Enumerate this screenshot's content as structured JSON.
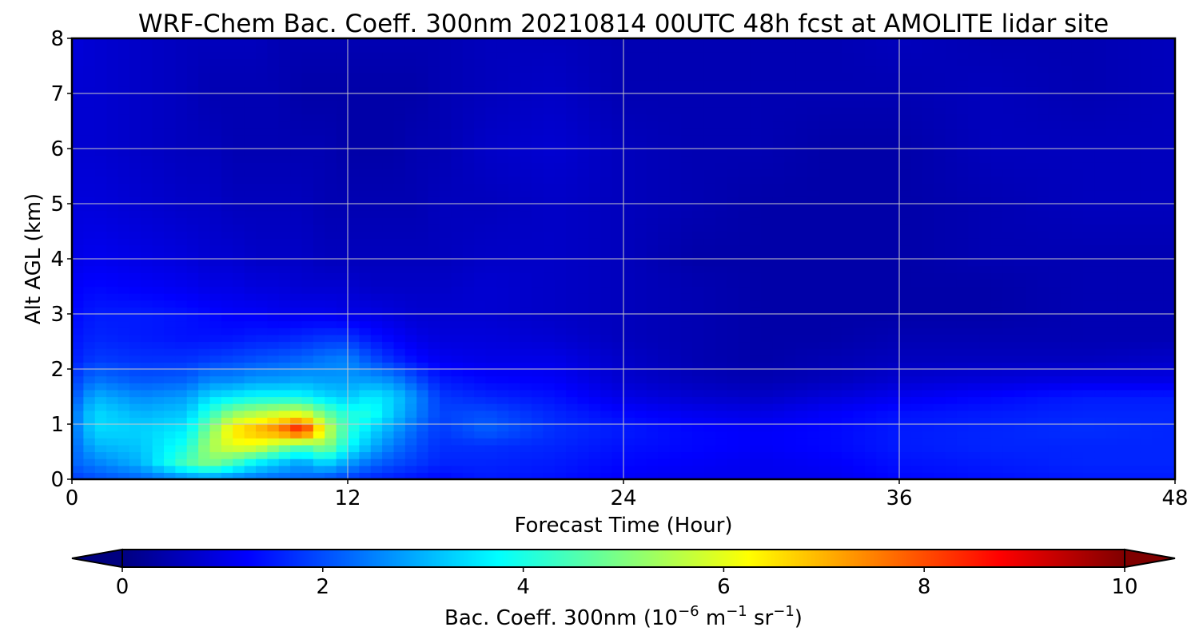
{
  "chart_data": {
    "type": "heatmap",
    "title": "WRF-Chem Bac. Coeff. 300nm  20210814 00UTC 48h fcst at AMOLITE lidar site",
    "xlabel": "Forecast Time (Hour)",
    "ylabel": "Alt AGL (km)",
    "xlim": [
      0,
      48
    ],
    "ylim": [
      0,
      8
    ],
    "xticks": [
      0,
      12,
      24,
      36,
      48
    ],
    "yticks": [
      0,
      1,
      2,
      3,
      4,
      5,
      6,
      7,
      8
    ],
    "grid": true,
    "colormap": "jet",
    "colorbar": {
      "label_prefix": "Bac. Coeff. 300nm  (10",
      "label_exp1": "−6",
      "label_mid": " m",
      "label_exp2": "−1",
      "label_mid2": " sr",
      "label_exp3": "−1",
      "label_suffix": ")",
      "range": [
        0,
        10
      ],
      "ticks": [
        0,
        2,
        4,
        6,
        8,
        10
      ],
      "extend": "both"
    },
    "field_x": [
      0,
      1,
      3,
      5,
      6,
      7,
      8,
      9,
      10,
      11,
      12,
      13,
      14,
      15,
      16,
      18,
      21,
      24,
      27,
      30,
      33,
      36,
      40,
      44,
      48
    ],
    "field_y": [
      0,
      0.3,
      0.6,
      0.9,
      1.2,
      1.5,
      1.8,
      2.2,
      2.6,
      3,
      3.5,
      4,
      5,
      6,
      7,
      8
    ],
    "field_values": [
      [
        1.8,
        2.2,
        2.2,
        2.3,
        2.3,
        2.0,
        1.8,
        1.5,
        1.4,
        1.3,
        1.2,
        1.0,
        0.9,
        0.8,
        0.8,
        0.9
      ],
      [
        2.0,
        2.5,
        3.0,
        3.4,
        3.4,
        3.0,
        2.4,
        1.8,
        1.6,
        1.5,
        1.3,
        1.1,
        0.9,
        0.8,
        0.8,
        0.8
      ],
      [
        2.2,
        3.0,
        3.2,
        3.3,
        3.0,
        2.6,
        2.1,
        1.7,
        1.5,
        1.5,
        1.2,
        1.0,
        0.8,
        0.7,
        0.7,
        0.7
      ],
      [
        2.5,
        4.5,
        4.0,
        3.6,
        3.2,
        2.8,
        2.2,
        1.7,
        1.4,
        1.4,
        1.1,
        0.9,
        0.7,
        0.6,
        0.6,
        0.6
      ],
      [
        2.6,
        5.0,
        5.4,
        5.0,
        4.2,
        3.4,
        2.6,
        1.8,
        1.4,
        1.3,
        1.0,
        0.8,
        0.7,
        0.6,
        0.5,
        0.6
      ],
      [
        2.4,
        4.4,
        6.0,
        6.5,
        5.2,
        3.6,
        2.6,
        1.9,
        1.4,
        1.2,
        1.0,
        0.8,
        0.6,
        0.5,
        0.5,
        0.6
      ],
      [
        2.3,
        3.6,
        6.0,
        7.0,
        5.5,
        3.8,
        2.8,
        2.0,
        1.5,
        1.2,
        0.9,
        0.7,
        0.6,
        0.5,
        0.5,
        0.6
      ],
      [
        2.2,
        3.2,
        5.2,
        7.6,
        5.8,
        3.8,
        2.8,
        2.1,
        1.5,
        1.1,
        0.9,
        0.7,
        0.6,
        0.5,
        0.5,
        0.5
      ],
      [
        2.2,
        2.8,
        4.5,
        8.8,
        6.0,
        3.8,
        2.9,
        2.2,
        1.6,
        1.1,
        0.8,
        0.7,
        0.6,
        0.5,
        0.4,
        0.5
      ],
      [
        2.0,
        3.4,
        5.2,
        6.0,
        4.8,
        3.4,
        2.8,
        2.4,
        1.7,
        1.1,
        0.8,
        0.6,
        0.5,
        0.5,
        0.4,
        0.5
      ],
      [
        1.8,
        2.8,
        3.8,
        4.2,
        4.0,
        3.2,
        2.8,
        2.5,
        1.7,
        1.0,
        0.8,
        0.6,
        0.5,
        0.4,
        0.4,
        0.5
      ],
      [
        1.6,
        2.3,
        3.0,
        3.4,
        4.0,
        3.6,
        2.8,
        2.0,
        1.4,
        1.0,
        0.7,
        0.6,
        0.5,
        0.4,
        0.4,
        0.5
      ],
      [
        1.5,
        2.0,
        2.4,
        2.8,
        3.2,
        3.3,
        2.6,
        1.6,
        1.2,
        0.9,
        0.7,
        0.6,
        0.5,
        0.4,
        0.4,
        0.5
      ],
      [
        1.4,
        1.8,
        2.0,
        2.2,
        2.5,
        2.6,
        2.0,
        1.3,
        1.0,
        0.8,
        0.7,
        0.6,
        0.5,
        0.5,
        0.4,
        0.5
      ],
      [
        1.3,
        1.6,
        1.7,
        1.8,
        1.9,
        1.8,
        1.5,
        1.1,
        0.9,
        0.8,
        0.7,
        0.6,
        0.6,
        0.5,
        0.5,
        0.5
      ],
      [
        1.5,
        1.6,
        1.7,
        2.2,
        2.0,
        1.6,
        1.3,
        1.0,
        0.9,
        0.8,
        0.8,
        0.7,
        0.6,
        0.7,
        0.6,
        0.6
      ],
      [
        1.4,
        1.5,
        1.6,
        1.7,
        1.6,
        1.4,
        1.2,
        1.0,
        0.8,
        0.7,
        0.7,
        0.7,
        0.7,
        0.8,
        0.7,
        0.6
      ],
      [
        1.2,
        1.3,
        1.4,
        1.5,
        1.3,
        1.0,
        0.8,
        0.7,
        0.6,
        0.6,
        0.6,
        0.6,
        0.6,
        0.6,
        0.5,
        0.5
      ],
      [
        1.1,
        1.2,
        1.3,
        1.3,
        1.1,
        0.8,
        0.6,
        0.5,
        0.5,
        0.5,
        0.5,
        0.4,
        0.5,
        0.5,
        0.5,
        0.5
      ],
      [
        1.1,
        1.1,
        1.2,
        1.2,
        1.0,
        0.7,
        0.5,
        0.4,
        0.4,
        0.4,
        0.4,
        0.4,
        0.4,
        0.5,
        0.5,
        0.5
      ],
      [
        1.1,
        1.2,
        1.3,
        1.3,
        1.2,
        0.9,
        0.6,
        0.5,
        0.4,
        0.4,
        0.4,
        0.4,
        0.4,
        0.4,
        0.5,
        0.5
      ],
      [
        1.3,
        1.4,
        1.5,
        1.5,
        1.4,
        1.1,
        0.8,
        0.6,
        0.5,
        0.4,
        0.4,
        0.4,
        0.4,
        0.4,
        0.5,
        0.6
      ],
      [
        1.4,
        1.5,
        1.6,
        1.6,
        1.5,
        1.3,
        0.9,
        0.6,
        0.5,
        0.4,
        0.4,
        0.5,
        0.5,
        0.6,
        0.6,
        0.5
      ],
      [
        1.5,
        1.6,
        1.6,
        1.7,
        1.6,
        1.5,
        1.0,
        0.6,
        0.5,
        0.5,
        0.5,
        0.5,
        0.6,
        0.6,
        0.5,
        0.5
      ],
      [
        1.5,
        1.6,
        1.6,
        1.6,
        1.6,
        1.5,
        1.0,
        0.7,
        0.5,
        0.5,
        0.5,
        0.5,
        0.6,
        0.6,
        0.6,
        0.6
      ]
    ]
  }
}
